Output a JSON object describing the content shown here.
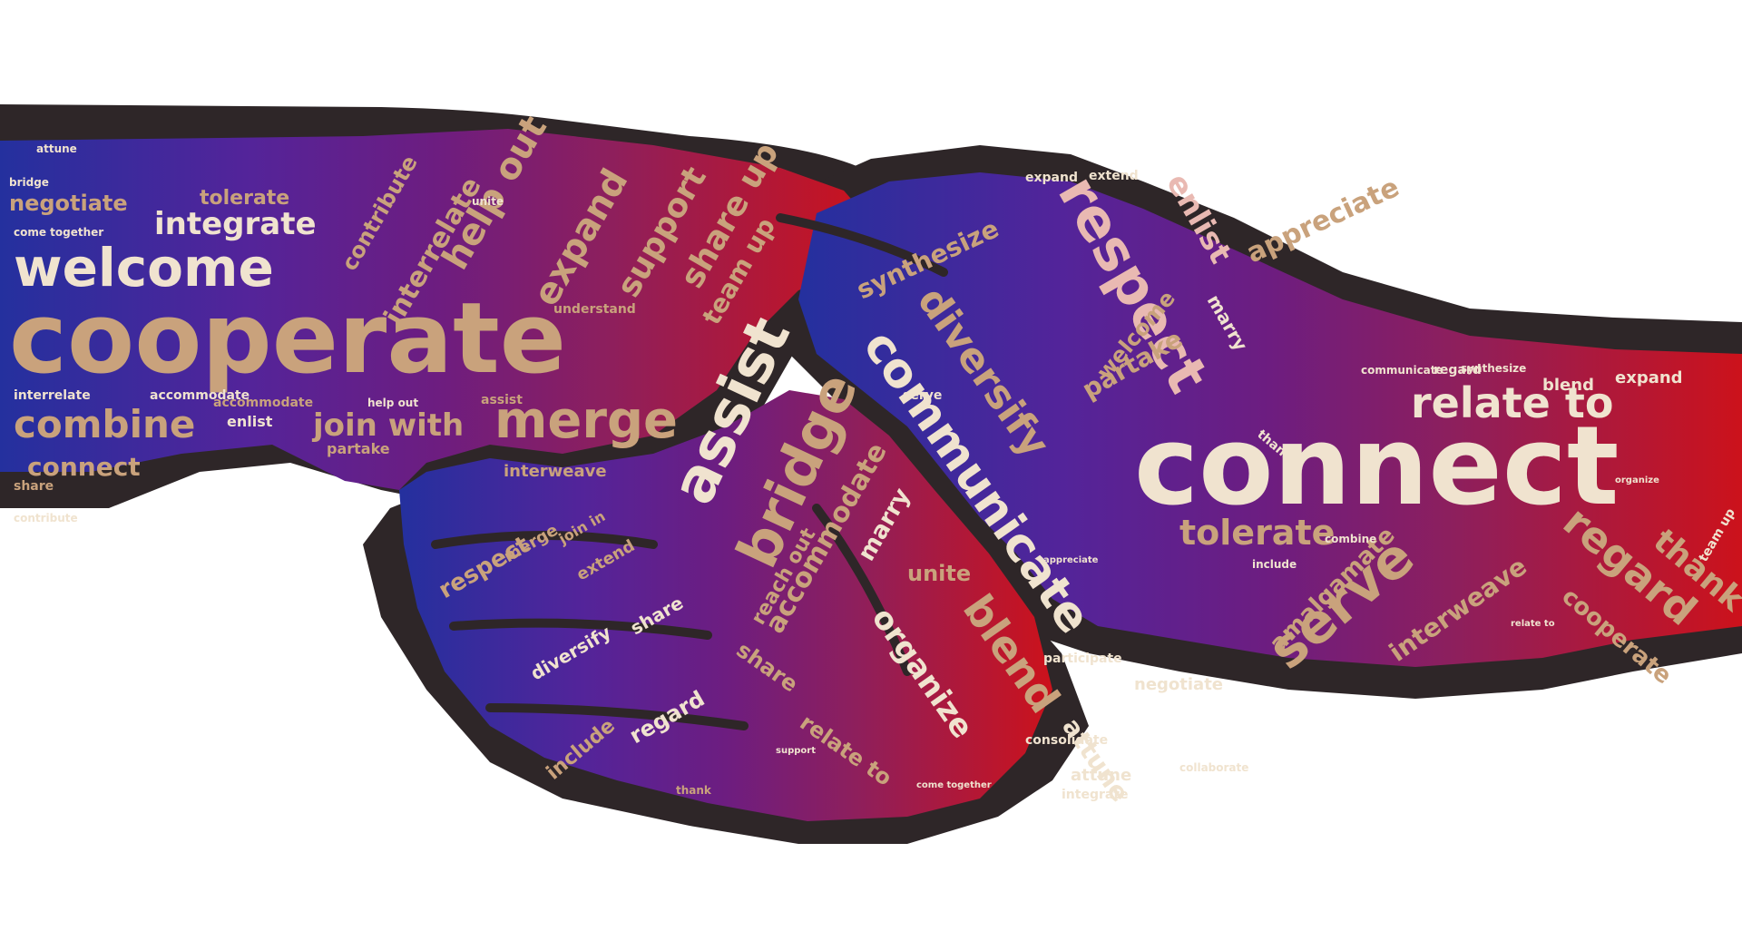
{
  "palette": {
    "background": "#ffffff",
    "outline": "#2e2628",
    "blue": "#2a2f9e",
    "violet": "#56249a",
    "purple": "#6e1d7e",
    "magenta": "#8e1f5a",
    "red": "#c8141e",
    "word_light": "#f0e3cf",
    "word_tan": "#c9a27c",
    "word_pink": "#e9b9b2"
  },
  "words": {
    "w1": "cooperate",
    "w2": "connect",
    "w3": "welcome",
    "w4": "integrate",
    "w5": "negotiate",
    "w6": "tolerate",
    "w7": "combine",
    "w8": "connect",
    "w9": "merge",
    "w10": "join with",
    "w11": "help out",
    "w12": "expand",
    "w13": "interrelate",
    "w14": "contribute",
    "w15": "support",
    "w16": "share up",
    "w17": "team up",
    "w18": "assist",
    "w19": "bridge",
    "w20": "communicate",
    "w21": "diversify",
    "w22": "accommodate",
    "w23": "organize",
    "w24": "blend",
    "w25": "attune",
    "w26": "synthesize",
    "w27": "respect",
    "w28": "enlist",
    "w29": "appreciate",
    "w30": "relate to",
    "w31": "tolerate",
    "w32": "serve",
    "w33": "regard",
    "w34": "thank",
    "w35": "cooperate",
    "w36": "amalgamate",
    "w37": "interweave",
    "w38": "expand",
    "w39": "blend",
    "w40": "partake",
    "w41": "unite",
    "w42": "marry",
    "w43": "accommodate",
    "w44": "interweave",
    "w45": "respect",
    "w46": "merge",
    "w47": "join in",
    "w48": "extend",
    "w49": "share",
    "w50": "diversify",
    "w51": "include",
    "w52": "regard",
    "w53": "relate to",
    "w54": "share",
    "w55": "attune",
    "w56": "consolidate",
    "w57": "integrate",
    "w58": "reach out",
    "w59": "participate",
    "w60": "negotiate",
    "w61": "marry",
    "w62": "welcome",
    "w63": "bridge",
    "w64": "come together",
    "w65": "understand",
    "w66": "partake",
    "w67": "enlist",
    "w68": "help out",
    "w69": "assist",
    "w70": "interrelate",
    "w71": "accommodate",
    "w72": "contribute",
    "w73": "share",
    "w74": "unite",
    "w75": "collaborate",
    "w76": "thank",
    "w77": "support",
    "w78": "serve",
    "w79": "relate to",
    "w80": "expand",
    "w81": "appreciate",
    "w82": "attune",
    "w83": "communicate",
    "w84": "synthesize",
    "w85": "include",
    "w86": "organize",
    "w87": "team up",
    "w88": "extend",
    "w89": "regard",
    "w90": "thank",
    "w91": "combine",
    "w92": "come together"
  }
}
